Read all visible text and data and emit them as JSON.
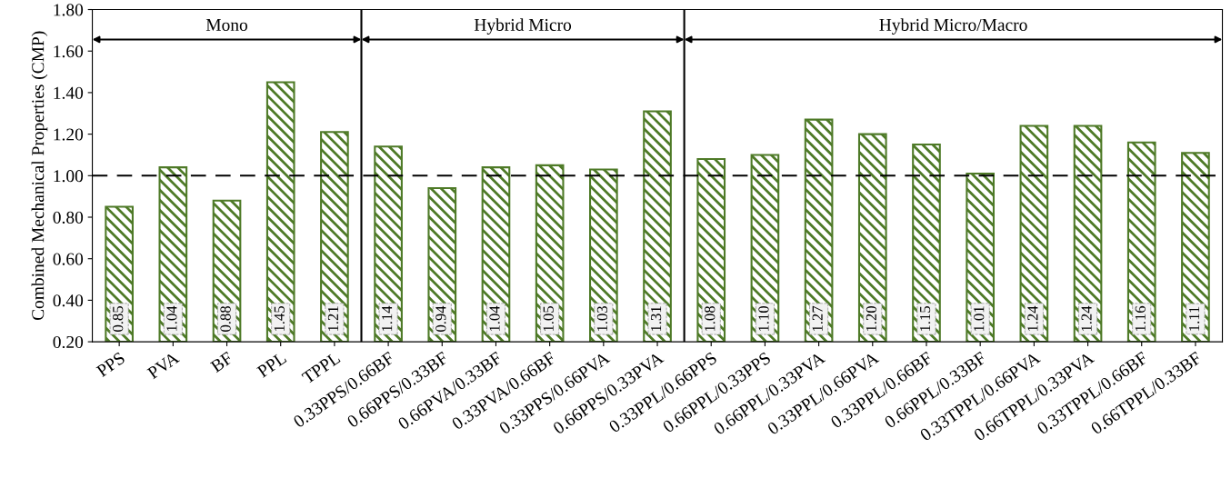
{
  "chart_data": {
    "type": "bar",
    "ylabel": "Combined Mechanical Properties (CMP)",
    "categories": [
      "PPS",
      "PVA",
      "BF",
      "PPL",
      "TPPL",
      "0.33PPS/0.66BF",
      "0.66PPS/0.33BF",
      "0.66PVA/0.33BF",
      "0.33PVA/0.66BF",
      "0.33PPS/0.66PVA",
      "0.66PPS/0.33PVA",
      "0.33PPL/0.66PPS",
      "0.66PPL/0.33PPS",
      "0.66PPL/0.33PVA",
      "0.33PPL/0.66PVA",
      "0.33PPL/0.66BF",
      "0.66PPL/0.33BF",
      "0.33TPPL/0.66PVA",
      "0.66TPPL/0.33PVA",
      "0.33TPPL/0.66BF",
      "0.66TPPL/0.33BF"
    ],
    "values": [
      0.85,
      1.04,
      0.88,
      1.45,
      1.21,
      1.14,
      0.94,
      1.04,
      1.05,
      1.03,
      1.31,
      1.08,
      1.1,
      1.27,
      1.2,
      1.15,
      1.01,
      1.24,
      1.24,
      1.16,
      1.11
    ],
    "color": "#4e7a27",
    "value_labels": [
      "0.85",
      "1.04",
      "0.88",
      "1.45",
      "1.21",
      "1.14",
      "0.94",
      "1.04",
      "1.05",
      "1.03",
      "1.31",
      "1.08",
      "1.10",
      "1.27",
      "1.20",
      "1.15",
      "1.01",
      "1.24",
      "1.24",
      "1.16",
      "1.11"
    ],
    "ylim": [
      0.2,
      1.8
    ],
    "yticks": [
      {
        "value": 0.2,
        "label": "0.20"
      },
      {
        "value": 0.4,
        "label": "0.40"
      },
      {
        "value": 0.6,
        "label": "0.60"
      },
      {
        "value": 0.8,
        "label": "0.80"
      },
      {
        "value": 1.0,
        "label": "1.00"
      },
      {
        "value": 1.2,
        "label": "1.20"
      },
      {
        "value": 1.4,
        "label": "1.40"
      },
      {
        "value": 1.6,
        "label": "1.60"
      },
      {
        "value": 1.8,
        "label": "1.80"
      }
    ],
    "ref_lines": [
      {
        "axis": "y",
        "value": 1.0,
        "label": null,
        "color": "#000000",
        "line_style": "dashed"
      }
    ],
    "annotations": [
      "Mono",
      "Hybrid Micro",
      "Hybrid Micro/Macro"
    ]
  }
}
